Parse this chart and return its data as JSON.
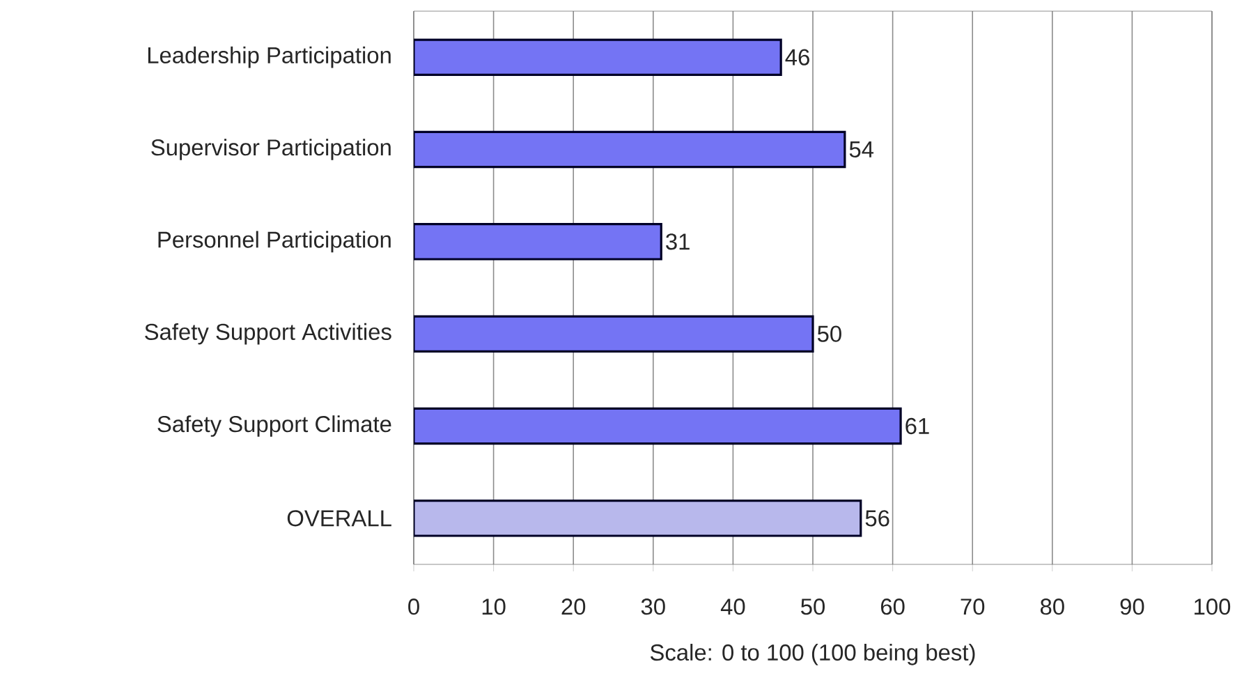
{
  "chart_data": {
    "type": "bar",
    "orientation": "horizontal",
    "categories": [
      "Leadership Participation",
      "Supervisor Participation",
      "Personnel Participation",
      "Safety Support Activities",
      "Safety Support Climate",
      "OVERALL"
    ],
    "values": [
      46,
      54,
      31,
      50,
      61,
      56
    ],
    "colors": [
      "#7474f4",
      "#7474f4",
      "#7474f4",
      "#7474f4",
      "#7474f4",
      "#b8b8ec"
    ],
    "xlabel": "Scale: 0 to 100 (100 being best)",
    "xlim": [
      0,
      100
    ],
    "xticks": [
      0,
      10,
      20,
      30,
      40,
      50,
      60,
      70,
      80,
      90,
      100
    ],
    "grid": "x",
    "data_labels": true
  }
}
